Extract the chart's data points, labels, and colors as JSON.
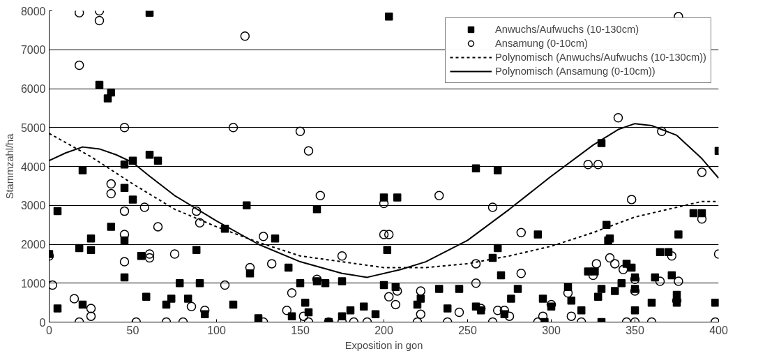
{
  "chart_data": {
    "type": "scatter",
    "xlabel": "Exposition in gon",
    "ylabel": "Stammzahl/ha",
    "xlim": [
      0,
      400
    ],
    "ylim": [
      0,
      8000
    ],
    "xticks": [
      0,
      50,
      100,
      150,
      200,
      250,
      300,
      350,
      400
    ],
    "yticks": [
      0,
      1000,
      2000,
      3000,
      4000,
      5000,
      6000,
      7000,
      8000
    ],
    "grid": "y",
    "legend": "top right",
    "series": [
      {
        "name": "Anwuchs/Aufwuchs (10-130cm)",
        "marker": "square",
        "color": "#000000",
        "x": [
          0,
          5,
          5,
          18,
          20,
          20,
          25,
          25,
          30,
          35,
          37,
          37,
          45,
          45,
          45,
          45,
          50,
          50,
          55,
          58,
          60,
          60,
          65,
          70,
          73,
          78,
          83,
          88,
          90,
          93,
          105,
          110,
          118,
          120,
          125,
          135,
          143,
          145,
          150,
          153,
          155,
          160,
          160,
          165,
          167,
          175,
          175,
          180,
          188,
          195,
          200,
          200,
          202,
          203,
          207,
          208,
          222,
          220,
          233,
          238,
          245,
          255,
          255,
          258,
          265,
          268,
          268,
          270,
          272,
          276,
          280,
          292,
          295,
          296,
          300,
          310,
          312,
          318,
          322,
          326,
          328,
          330,
          330,
          330,
          333,
          334,
          335,
          338,
          342,
          345,
          348,
          350,
          350,
          350,
          360,
          362,
          365,
          370,
          372,
          375,
          375,
          376,
          385,
          390,
          398,
          400
        ],
        "values": [
          1750,
          2850,
          350,
          1900,
          3900,
          450,
          2150,
          1850,
          6100,
          5750,
          5900,
          2450,
          4050,
          3450,
          2100,
          1150,
          4150,
          3150,
          1700,
          650,
          7950,
          4300,
          4150,
          450,
          600,
          1000,
          600,
          1850,
          1000,
          200,
          2400,
          450,
          3000,
          1250,
          100,
          2150,
          1400,
          150,
          1000,
          500,
          250,
          2900,
          1050,
          1000,
          0,
          1050,
          150,
          300,
          400,
          200,
          3200,
          950,
          1850,
          7850,
          900,
          3200,
          600,
          450,
          850,
          350,
          850,
          3950,
          400,
          300,
          1650,
          3900,
          1900,
          1200,
          200,
          600,
          850,
          2250,
          600,
          0,
          400,
          900,
          550,
          300,
          1300,
          1300,
          650,
          4600,
          850,
          0,
          2500,
          2100,
          2150,
          800,
          1000,
          1500,
          1400,
          1150,
          850,
          300,
          500,
          1150,
          1800,
          1800,
          1200,
          500,
          700,
          2250,
          2800,
          2800,
          500,
          4400
        ]
      },
      {
        "name": "Ansamung (0-10cm)",
        "marker": "circle",
        "color": "#000000",
        "x": [
          0,
          2,
          15,
          18,
          18,
          18,
          25,
          25,
          30,
          30,
          37,
          37,
          45,
          45,
          45,
          45,
          52,
          57,
          60,
          60,
          65,
          70,
          75,
          80,
          85,
          88,
          90,
          93,
          105,
          110,
          117,
          120,
          128,
          128,
          133,
          142,
          145,
          150,
          152,
          155,
          155,
          160,
          162,
          167,
          175,
          175,
          182,
          190,
          200,
          200,
          203,
          203,
          207,
          208,
          220,
          222,
          222,
          233,
          238,
          245,
          255,
          255,
          258,
          265,
          265,
          268,
          272,
          275,
          282,
          282,
          292,
          295,
          300,
          310,
          312,
          318,
          322,
          325,
          327,
          328,
          335,
          338,
          340,
          343,
          345,
          348,
          350,
          350,
          350,
          360,
          365,
          366,
          372,
          375,
          376,
          376,
          390,
          390,
          398,
          400
        ],
        "values": [
          1700,
          950,
          600,
          6600,
          7950,
          0,
          350,
          150,
          8000,
          7750,
          3550,
          3300,
          5000,
          2850,
          2250,
          1550,
          0,
          2950,
          1750,
          1650,
          2450,
          0,
          1750,
          0,
          400,
          2850,
          2550,
          300,
          950,
          5000,
          7350,
          1400,
          0,
          2200,
          1500,
          300,
          750,
          4900,
          150,
          4400,
          0,
          1100,
          3250,
          0,
          1700,
          0,
          0,
          0,
          3050,
          2250,
          2250,
          650,
          450,
          800,
          0,
          200,
          800,
          3250,
          0,
          250,
          1500,
          1000,
          350,
          2950,
          0,
          300,
          300,
          150,
          2300,
          1250,
          0,
          150,
          450,
          750,
          150,
          0,
          4050,
          1200,
          1500,
          4050,
          1650,
          1500,
          5250,
          1350,
          0,
          3150,
          800,
          0,
          1100,
          0,
          1050,
          4900,
          1700,
          550,
          7850,
          1050,
          2650,
          3850,
          0,
          1750
        ]
      },
      {
        "name": "Polynomisch (Anwuchs/Aufwuchs (10-130cm))",
        "type": "line",
        "marker": "none",
        "line_style": "dashed",
        "color": "#000000",
        "x": [
          0,
          25,
          50,
          75,
          100,
          125,
          150,
          175,
          200,
          225,
          250,
          275,
          300,
          325,
          350,
          375,
          390,
          400
        ],
        "values": [
          4850,
          4250,
          3550,
          2900,
          2450,
          2050,
          1700,
          1550,
          1400,
          1400,
          1500,
          1700,
          1950,
          2300,
          2700,
          2950,
          3100,
          3100
        ]
      },
      {
        "name": "Polynomisch (Ansamung (0-10cm))",
        "type": "line",
        "marker": "none",
        "line_style": "solid",
        "color": "#000000",
        "x": [
          0,
          10,
          20,
          30,
          40,
          50,
          60,
          75,
          100,
          125,
          150,
          175,
          190,
          210,
          225,
          250,
          275,
          300,
          325,
          340,
          350,
          360,
          375,
          390,
          400
        ],
        "values": [
          4150,
          4350,
          4500,
          4450,
          4300,
          4100,
          3750,
          3250,
          2600,
          2000,
          1550,
          1250,
          1150,
          1350,
          1550,
          2100,
          2900,
          3750,
          4550,
          4950,
          5100,
          5050,
          4800,
          4200,
          3700
        ]
      }
    ]
  }
}
